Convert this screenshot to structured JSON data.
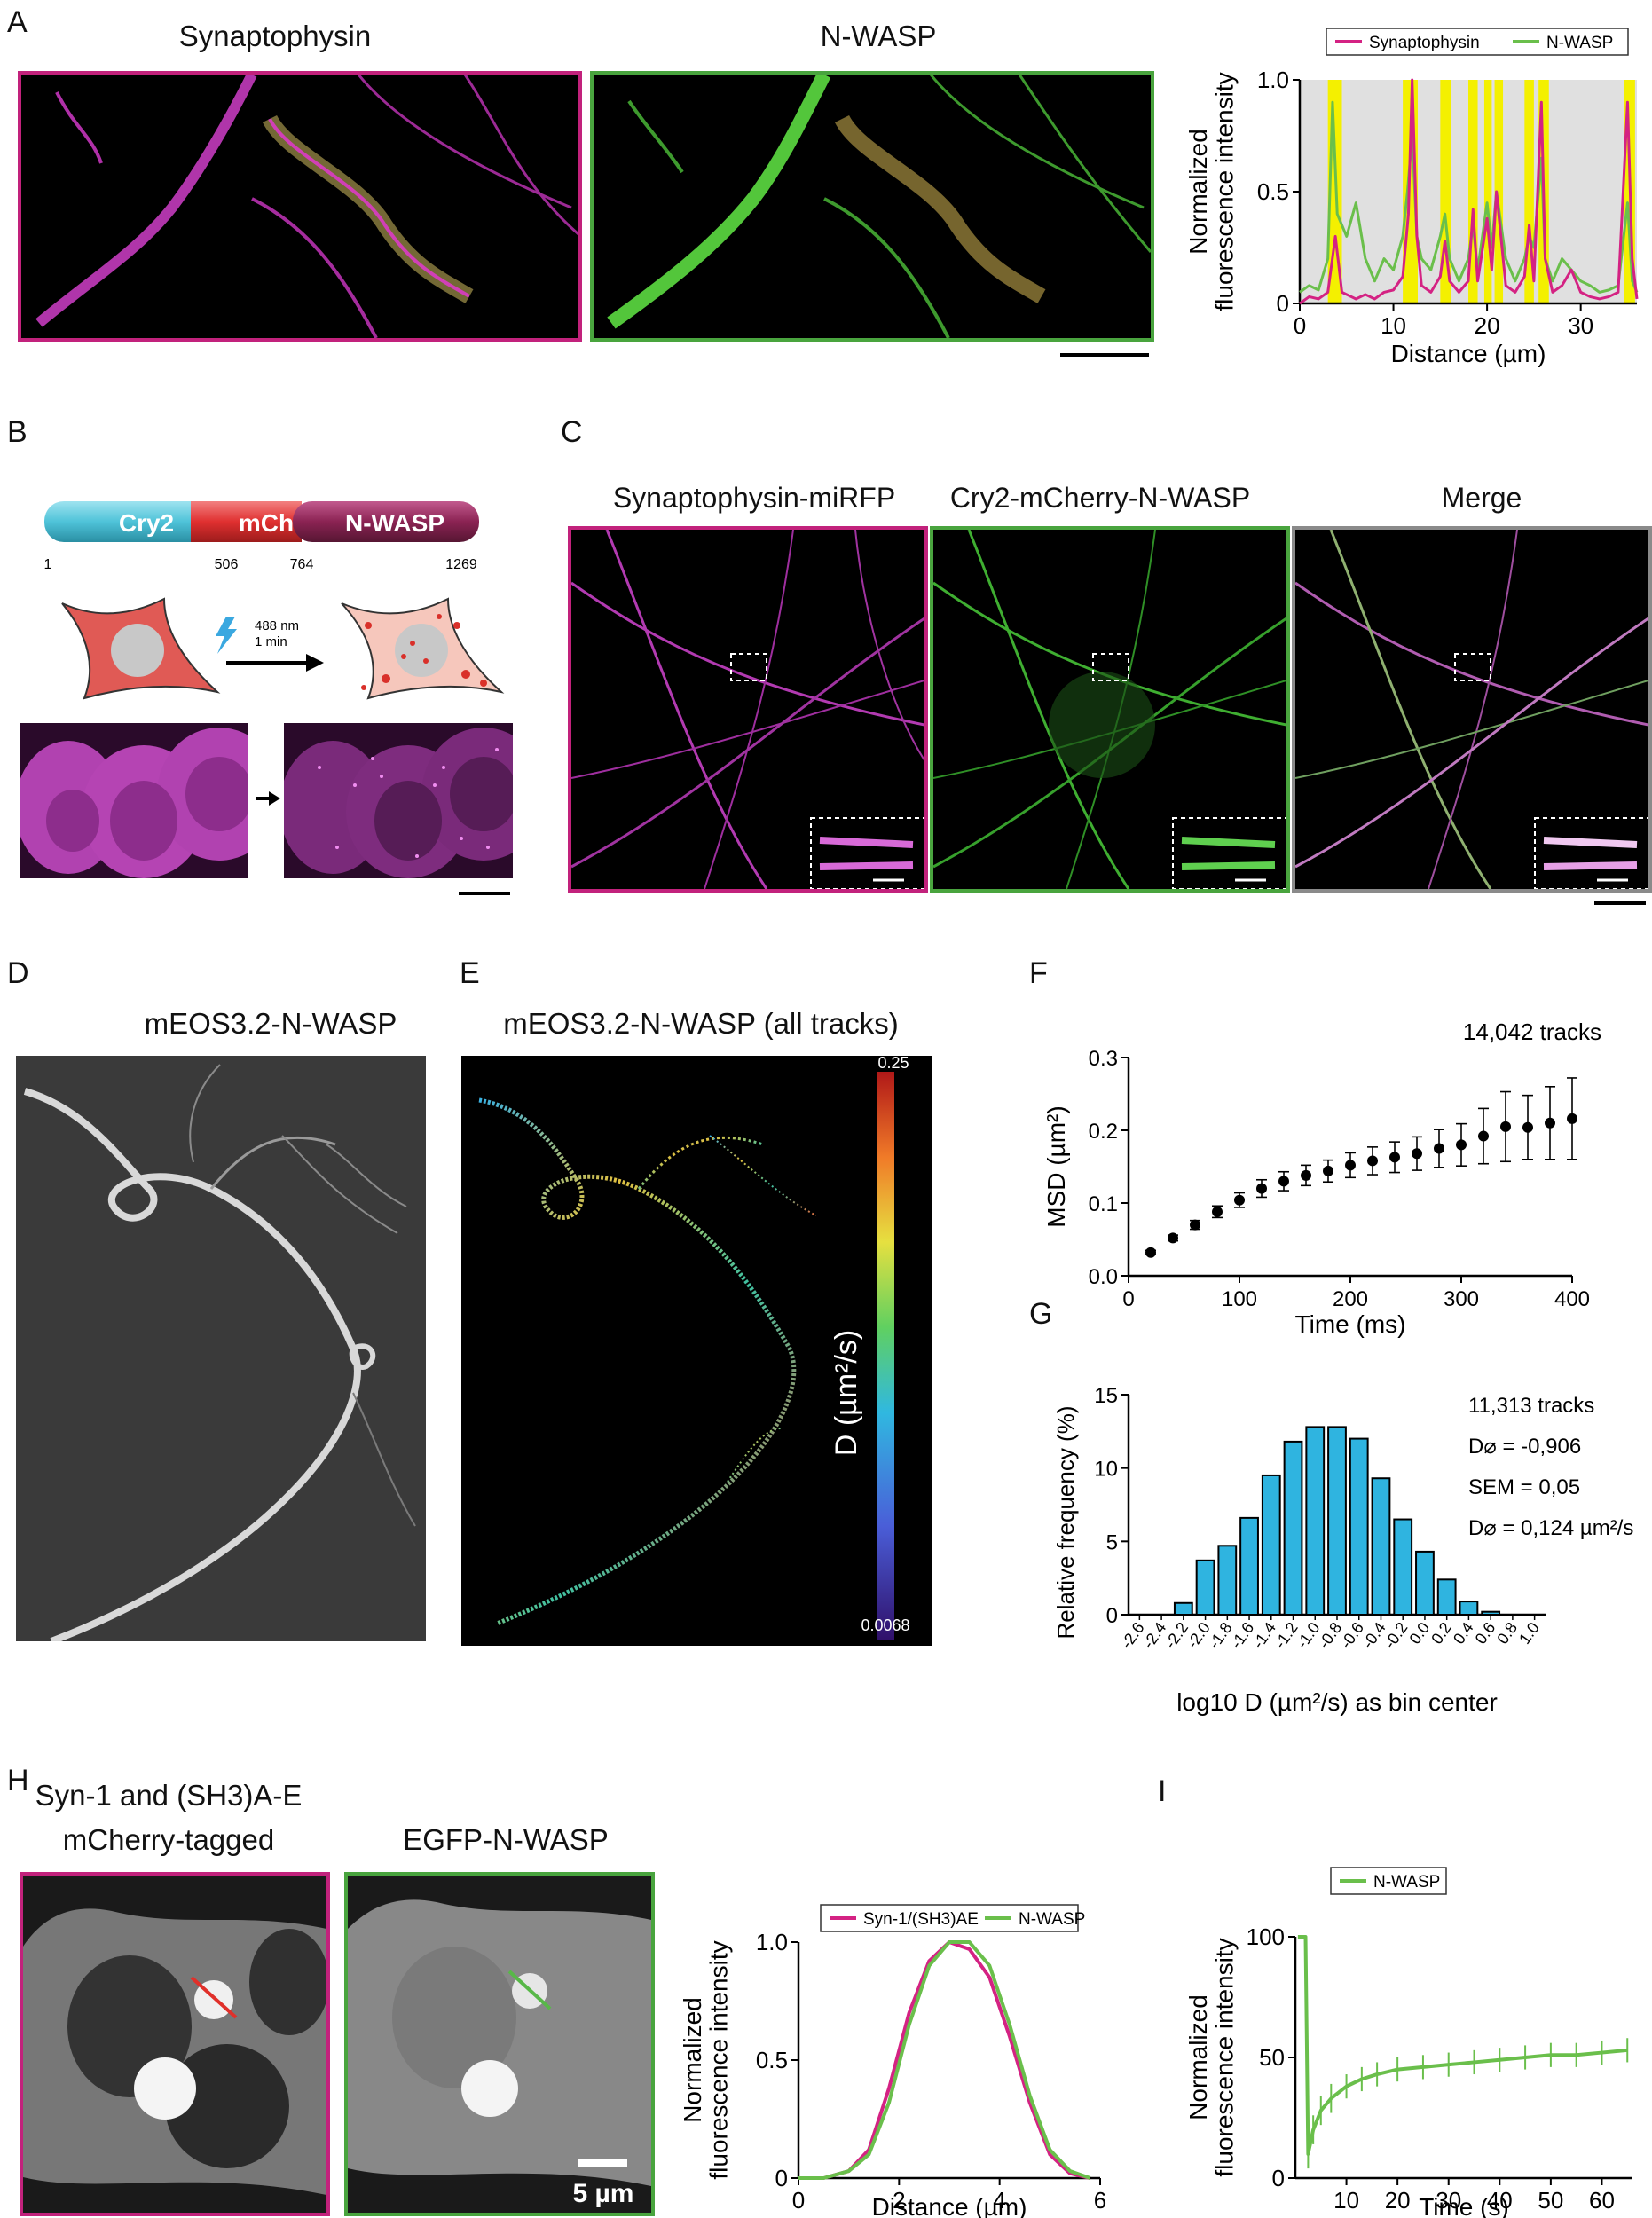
{
  "panels": {
    "A": {
      "label": "A",
      "titles": [
        "Synaptophysin",
        "N-WASP"
      ],
      "colors": {
        "synaptophysin": "#d42283",
        "nwasp": "#6abf4b",
        "highlight": "#f4f000"
      }
    },
    "B": {
      "label": "B",
      "construct": {
        "segments": [
          "Cry2",
          "mCh",
          "N-WASP"
        ],
        "positions": [
          "1",
          "506",
          "764",
          "1269"
        ]
      },
      "stimulus": [
        "488 nm",
        "1 min"
      ]
    },
    "C": {
      "label": "C",
      "titles": [
        "Synaptophysin-miRFP",
        "Cry2-mCherry-N-WASP",
        "Merge"
      ]
    },
    "D": {
      "label": "D",
      "title": "mEOS3.2-N-WASP"
    },
    "E": {
      "label": "E",
      "title": "mEOS3.2-N-WASP (all tracks)",
      "colorbar": {
        "max": "0.25",
        "min": "0.0068",
        "label": "D (µm²/s)"
      }
    },
    "F": {
      "label": "F",
      "annotation": "14,042  tracks"
    },
    "G": {
      "label": "G",
      "annotations": [
        "11,313  tracks",
        "D⌀ = -0,906",
        "SEM = 0,05",
        "D⌀ = 0,124 µm²/s"
      ]
    },
    "H": {
      "label": "H",
      "titles": [
        "Syn-1 and (SH3)A-E",
        "mCherry-tagged",
        "EGFP-N-WASP"
      ],
      "scalebar": "5 µm"
    },
    "I": {
      "label": "I"
    }
  },
  "chart_data": [
    {
      "id": "A",
      "type": "line",
      "xlabel": "Distance (µm)",
      "ylabel": [
        "Normalized",
        "fluorescence intensity"
      ],
      "xlim": [
        0,
        36
      ],
      "ylim": [
        0,
        1.0
      ],
      "xticks": [
        0,
        10,
        20,
        30
      ],
      "yticks": [
        "0",
        "0.5",
        "1.0"
      ],
      "legend": "top",
      "highlight_bands": [
        [
          3,
          4.5
        ],
        [
          11,
          12.6
        ],
        [
          15,
          16.2
        ],
        [
          18,
          19
        ],
        [
          19.7,
          20.5
        ],
        [
          20.8,
          21.7
        ],
        [
          24,
          25
        ],
        [
          25.5,
          26.6
        ],
        [
          34.6,
          35.8
        ]
      ],
      "series": [
        {
          "name": "Synaptophysin",
          "x": [
            0,
            1,
            2,
            3,
            3.8,
            4.5,
            6,
            7,
            8,
            9,
            10,
            11,
            11.6,
            12,
            12.5,
            13,
            14,
            15,
            15.5,
            16,
            17,
            18,
            18.5,
            19,
            20,
            20.5,
            21,
            22,
            23,
            24,
            24.5,
            25,
            25.8,
            26.2,
            27,
            28,
            29,
            30,
            31,
            32,
            33,
            34,
            35,
            35.5,
            36
          ],
          "y": [
            0,
            0.03,
            0.02,
            0.05,
            0.3,
            0.05,
            0.02,
            0.04,
            0.02,
            0.05,
            0.06,
            0.12,
            0.4,
            1.0,
            0.3,
            0.08,
            0.05,
            0.12,
            0.28,
            0.1,
            0.05,
            0.1,
            0.42,
            0.1,
            0.38,
            0.15,
            0.5,
            0.08,
            0.05,
            0.12,
            0.35,
            0.1,
            0.9,
            0.2,
            0.05,
            0.08,
            0.15,
            0.05,
            0.03,
            0.02,
            0.03,
            0.05,
            0.9,
            0.2,
            0.02
          ]
        },
        {
          "name": "N-WASP",
          "x": [
            0,
            1,
            2,
            3,
            3.5,
            4,
            5,
            6,
            7,
            8,
            9,
            10,
            11,
            11.5,
            12,
            12.5,
            13,
            14,
            15,
            15.5,
            16,
            17,
            18,
            18.5,
            19,
            20,
            20.5,
            21,
            22,
            23,
            24,
            24.5,
            25,
            25.8,
            26.2,
            27,
            28,
            29,
            30,
            31,
            32,
            33,
            34,
            35,
            35.5,
            36
          ],
          "y": [
            0.05,
            0.08,
            0.06,
            0.2,
            0.9,
            0.4,
            0.3,
            0.45,
            0.2,
            0.1,
            0.2,
            0.15,
            0.3,
            0.5,
            0.75,
            0.3,
            0.2,
            0.15,
            0.3,
            0.4,
            0.2,
            0.1,
            0.2,
            0.35,
            0.15,
            0.45,
            0.25,
            0.5,
            0.2,
            0.1,
            0.2,
            0.3,
            0.25,
            0.65,
            0.2,
            0.1,
            0.2,
            0.15,
            0.1,
            0.08,
            0.05,
            0.06,
            0.08,
            0.45,
            0.1,
            0.05
          ]
        }
      ]
    },
    {
      "id": "F",
      "type": "scatter",
      "xlabel": "Time (ms)",
      "ylabel": "MSD (µm²)",
      "xlim": [
        0,
        400
      ],
      "ylim": [
        0,
        0.3
      ],
      "xticks": [
        0,
        100,
        200,
        300,
        400
      ],
      "yticks": [
        "0.0",
        "0.1",
        "0.2",
        "0.3"
      ],
      "x": [
        20,
        40,
        60,
        80,
        100,
        120,
        140,
        160,
        180,
        200,
        220,
        240,
        260,
        280,
        300,
        320,
        340,
        360,
        380,
        400
      ],
      "y": [
        0.032,
        0.052,
        0.07,
        0.088,
        0.104,
        0.12,
        0.13,
        0.138,
        0.144,
        0.152,
        0.158,
        0.163,
        0.168,
        0.175,
        0.18,
        0.192,
        0.205,
        0.204,
        0.21,
        0.216
      ],
      "err": [
        0.003,
        0.004,
        0.006,
        0.008,
        0.01,
        0.012,
        0.013,
        0.014,
        0.015,
        0.017,
        0.019,
        0.021,
        0.023,
        0.026,
        0.029,
        0.038,
        0.048,
        0.044,
        0.05,
        0.056
      ]
    },
    {
      "id": "G",
      "type": "bar",
      "xlabel": "log10 D (µm²/s) as bin center",
      "ylabel": "Relative frequency (%)",
      "ylim": [
        0,
        15
      ],
      "yticks": [
        "0",
        "5",
        "10",
        "15"
      ],
      "categories": [
        "-2.6",
        "-2.4",
        "-2.2",
        "-2.0",
        "-1.8",
        "-1.6",
        "-1.4",
        "-1.2",
        "-1.0",
        "-0.8",
        "-0.6",
        "-0.4",
        "-0.2",
        "0.0",
        "0.2",
        "0.4",
        "0.6",
        "0.8",
        "1.0"
      ],
      "values": [
        0,
        0,
        0.8,
        3.7,
        4.7,
        6.6,
        9.5,
        11.8,
        12.8,
        12.8,
        12.0,
        9.3,
        6.5,
        4.3,
        2.4,
        0.9,
        0.2,
        0,
        0
      ]
    },
    {
      "id": "H",
      "type": "line",
      "xlabel": "Distance (µm)",
      "ylabel": [
        "Normalized",
        "fluorescence intensity"
      ],
      "xlim": [
        0,
        6
      ],
      "ylim": [
        0,
        1.0
      ],
      "xticks": [
        0,
        2,
        4,
        6
      ],
      "yticks": [
        "0",
        "0.5",
        "1.0"
      ],
      "legend": "top",
      "series": [
        {
          "name": "Syn-1/(SH3)AE",
          "x": [
            0,
            0.5,
            1.0,
            1.4,
            1.8,
            2.2,
            2.6,
            3.0,
            3.4,
            3.8,
            4.2,
            4.6,
            5.0,
            5.4,
            5.8
          ],
          "y": [
            0,
            0,
            0.03,
            0.12,
            0.38,
            0.7,
            0.92,
            1.0,
            0.97,
            0.85,
            0.6,
            0.32,
            0.1,
            0.02,
            0
          ]
        },
        {
          "name": "N-WASP",
          "x": [
            0,
            0.5,
            1.0,
            1.4,
            1.8,
            2.2,
            2.6,
            3.0,
            3.4,
            3.8,
            4.2,
            4.6,
            5.0,
            5.4,
            5.8
          ],
          "y": [
            0,
            0,
            0.03,
            0.1,
            0.32,
            0.65,
            0.9,
            1.0,
            1.0,
            0.9,
            0.65,
            0.35,
            0.12,
            0.03,
            0
          ]
        }
      ]
    },
    {
      "id": "I",
      "type": "line",
      "xlabel": "Time (s)",
      "ylabel": [
        "Normalized",
        "fluorescence intensity"
      ],
      "xlim": [
        0,
        66
      ],
      "ylim": [
        0,
        100
      ],
      "xticks": [
        10,
        20,
        30,
        40,
        50,
        60
      ],
      "yticks": [
        "0",
        "50",
        "100"
      ],
      "legend": "top",
      "series": [
        {
          "name": "N-WASP",
          "x": [
            0.5,
            2,
            2.5,
            3.5,
            5,
            7,
            10,
            13,
            16,
            20,
            25,
            30,
            35,
            40,
            45,
            50,
            55,
            60,
            65
          ],
          "y": [
            100,
            100,
            10,
            20,
            28,
            33,
            38,
            41,
            43,
            45,
            46,
            47,
            48,
            49,
            50,
            51,
            51,
            52,
            53
          ],
          "err": [
            0,
            0,
            6,
            6,
            6,
            6,
            5,
            5,
            5,
            5,
            5,
            5,
            5,
            5,
            5,
            5,
            5,
            5,
            5
          ]
        }
      ]
    }
  ]
}
